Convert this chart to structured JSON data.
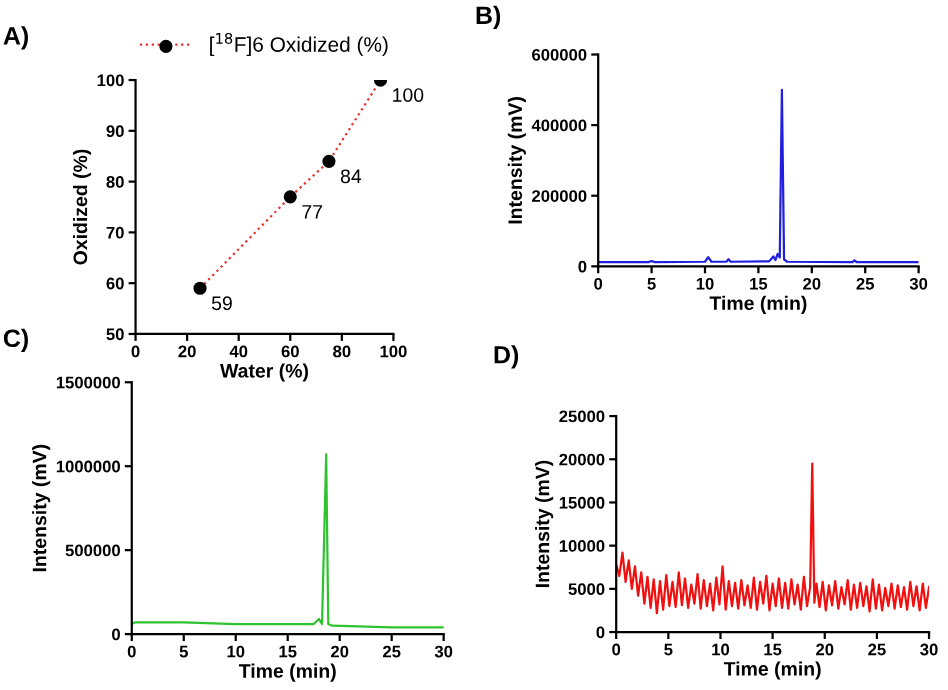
{
  "chart_data": [
    {
      "type": "line",
      "title": "A)",
      "xlabel": "Water (%)",
      "ylabel": "Oxidized (%)",
      "xlim": [
        0,
        100
      ],
      "ylim": [
        50,
        100
      ],
      "xticks": [
        0,
        20,
        40,
        60,
        80,
        100
      ],
      "yticks": [
        50,
        60,
        70,
        80,
        90,
        100
      ],
      "legend": "top",
      "series": [
        {
          "type": "line",
          "color": "#e8322e",
          "line_style": "dotted",
          "marker": "none",
          "x": [
            25,
            60,
            75,
            95
          ],
          "values": [
            59,
            77,
            84,
            100
          ]
        },
        {
          "type": "scatter",
          "name": "[$^{18}$F]6 Oxidized (%)",
          "color": "#000000",
          "marker": "circle",
          "x": [
            25,
            60,
            75,
            95
          ],
          "values": [
            59,
            77,
            84,
            100
          ],
          "value_labels": [
            "59",
            "77",
            "84",
            "100"
          ]
        }
      ]
    },
    {
      "type": "line",
      "title": "B)",
      "xlabel": "Time (min)",
      "ylabel": "Intensity (mV)",
      "xlim": [
        0,
        30
      ],
      "ylim": [
        0,
        600000
      ],
      "xticks": [
        0,
        5,
        10,
        15,
        20,
        25,
        30
      ],
      "yticks": [
        0,
        200000,
        400000,
        600000
      ],
      "series": [
        {
          "type": "line",
          "color": "#1f1fe0",
          "x": [
            0,
            4.7,
            5,
            5.3,
            10,
            10.3,
            10.6,
            12,
            12.2,
            12.4,
            16,
            16.4,
            16.6,
            16.8,
            17.0,
            17.2,
            17.4,
            17.7,
            23.8,
            24,
            24.2,
            30
          ],
          "values": [
            12000,
            12000,
            15000,
            12000,
            13000,
            26000,
            13000,
            13000,
            20000,
            13000,
            14000,
            28000,
            18000,
            35000,
            25000,
            500000,
            20000,
            13000,
            12000,
            17000,
            12000,
            12000
          ]
        }
      ]
    },
    {
      "type": "line",
      "title": "C)",
      "xlabel": "Time (min)",
      "ylabel": "Intensity (mV)",
      "xlim": [
        0,
        30
      ],
      "ylim": [
        0,
        1500000
      ],
      "xticks": [
        0,
        5,
        10,
        15,
        20,
        25,
        30
      ],
      "yticks": [
        0,
        500000,
        1000000,
        1500000
      ],
      "series": [
        {
          "type": "line",
          "color": "#2ec22e",
          "x": [
            0,
            0.3,
            0.6,
            5,
            10,
            15,
            17.5,
            18.0,
            18.3,
            18.7,
            18.9,
            19.3,
            25,
            30
          ],
          "values": [
            60000,
            70000,
            70000,
            70000,
            60000,
            60000,
            60000,
            90000,
            60000,
            1070000,
            60000,
            50000,
            40000,
            40000
          ]
        }
      ]
    },
    {
      "type": "line",
      "title": "D)",
      "xlabel": "Time (min)",
      "ylabel": "Intensity (mV)",
      "xlim": [
        0,
        30
      ],
      "ylim": [
        0,
        25000
      ],
      "xticks": [
        0,
        5,
        10,
        15,
        20,
        25,
        30
      ],
      "yticks": [
        0,
        5000,
        10000,
        15000,
        20000,
        25000
      ],
      "series": [
        {
          "type": "line",
          "color": "#f01010",
          "x": [
            0,
            0.3,
            0.6,
            0.9,
            1.2,
            1.5,
            1.8,
            2.1,
            2.4,
            2.7,
            3.0,
            3.3,
            3.6,
            3.9,
            4.2,
            4.5,
            4.8,
            5.1,
            5.4,
            5.7,
            6.0,
            6.3,
            6.6,
            6.9,
            7.2,
            7.5,
            7.8,
            8.1,
            8.4,
            8.7,
            9.0,
            9.3,
            9.6,
            9.9,
            10.2,
            10.5,
            10.8,
            11.1,
            11.4,
            11.7,
            12.0,
            12.3,
            12.6,
            12.9,
            13.2,
            13.5,
            13.8,
            14.1,
            14.4,
            14.7,
            15.0,
            15.3,
            15.6,
            15.9,
            16.2,
            16.5,
            16.8,
            17.1,
            17.4,
            17.7,
            18.0,
            18.3,
            18.6,
            18.8,
            19.0,
            19.2,
            19.5,
            19.8,
            20.1,
            20.4,
            20.7,
            21.0,
            21.3,
            21.6,
            21.9,
            22.2,
            22.5,
            22.8,
            23.1,
            23.4,
            23.7,
            24.0,
            24.3,
            24.6,
            24.9,
            25.2,
            25.5,
            25.8,
            26.1,
            26.4,
            26.7,
            27.0,
            27.3,
            27.6,
            27.9,
            28.2,
            28.5,
            28.8,
            29.1,
            29.4,
            29.7,
            30.0
          ],
          "values": [
            7800,
            6500,
            9200,
            5800,
            8300,
            5000,
            7600,
            4200,
            6900,
            3300,
            6400,
            2800,
            6100,
            2200,
            5900,
            2600,
            6600,
            3000,
            5800,
            2900,
            6900,
            3100,
            6200,
            2800,
            5500,
            3300,
            6700,
            2700,
            6000,
            3000,
            5600,
            2500,
            6300,
            3200,
            7600,
            2600,
            5900,
            3000,
            5700,
            2700,
            6000,
            3100,
            5400,
            2800,
            6300,
            2600,
            5800,
            3300,
            6500,
            2500,
            5600,
            3000,
            6200,
            2800,
            5700,
            2700,
            6100,
            3200,
            5500,
            2600,
            6400,
            3000,
            5200,
            19500,
            3400,
            5600,
            2900,
            5800,
            2500,
            5400,
            3100,
            5900,
            2700,
            5200,
            3200,
            6000,
            2600,
            5500,
            2800,
            5700,
            3000,
            5300,
            2400,
            6100,
            2700,
            5500,
            2500,
            5100,
            3000,
            5600,
            2700,
            5400,
            2900,
            5200,
            2600,
            5800,
            3000,
            5300,
            2500,
            5600,
            2800,
            5200
          ]
        }
      ]
    }
  ]
}
